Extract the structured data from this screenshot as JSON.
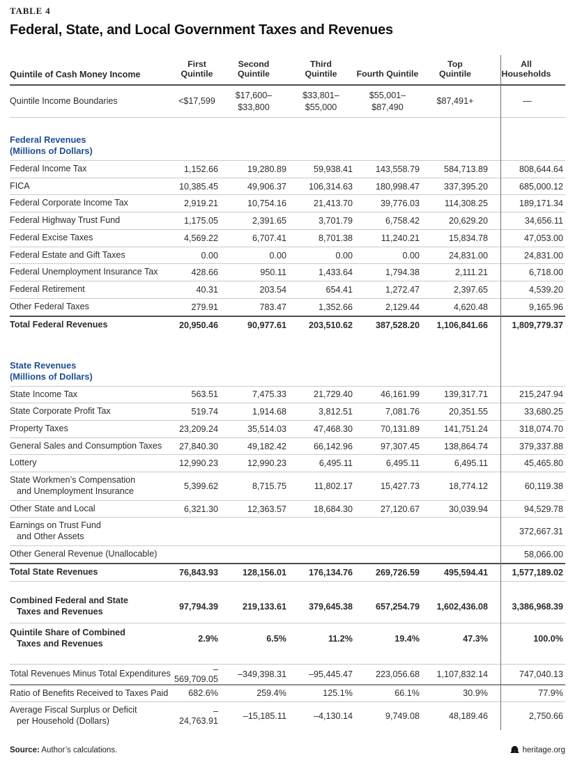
{
  "page": {
    "table_label": "TABLE 4",
    "title": "Federal, State, and Local Government Taxes and Revenues"
  },
  "table": {
    "row_header_label": "Quintile of Cash Money Income",
    "columns": [
      "First\nQuintile",
      "Second\nQuintile",
      "Third\nQuintile",
      "Fourth Quintile",
      "Top\nQuintile",
      "All\nHouseholds"
    ],
    "rows": [
      {
        "type": "boundary",
        "label": "Quintile Income Boundaries",
        "values": [
          "<$17,599",
          "$17,600–\n$33,800",
          "$33,801–\n$55,000",
          "$55,001–\n$87,490",
          "$87,491+",
          "—"
        ]
      },
      {
        "type": "section",
        "label": "Federal Revenues\n(Millions of Dollars)",
        "values": [
          "",
          "",
          "",
          "",
          "",
          ""
        ]
      },
      {
        "type": "data",
        "label": "Federal Income Tax",
        "values": [
          "1,152.66",
          "19,280.89",
          "59,938.41",
          "143,558.79",
          "584,713.89",
          "808,644.64"
        ]
      },
      {
        "type": "data",
        "label": "FICA",
        "values": [
          "10,385.45",
          "49,906.37",
          "106,314.63",
          "180,998.47",
          "337,395.20",
          "685,000.12"
        ]
      },
      {
        "type": "data",
        "label": "Federal Corporate Income Tax",
        "values": [
          "2,919.21",
          "10,754.16",
          "21,413.70",
          "39,776.03",
          "114,308.25",
          "189,171.34"
        ]
      },
      {
        "type": "data",
        "label": "Federal Highway Trust Fund",
        "values": [
          "1,175.05",
          "2,391.65",
          "3,701.79",
          "6,758.42",
          "20,629.20",
          "34,656.11"
        ]
      },
      {
        "type": "data",
        "label": "Federal Excise Taxes",
        "values": [
          "4,569.22",
          "6,707.41",
          "8,701.38",
          "11,240.21",
          "15,834.78",
          "47,053.00"
        ]
      },
      {
        "type": "data",
        "label": "Federal Estate and Gift Taxes",
        "values": [
          "0.00",
          "0.00",
          "0.00",
          "0.00",
          "24,831.00",
          "24,831.00"
        ]
      },
      {
        "type": "data",
        "label": "Federal Unemployment Insurance Tax",
        "values": [
          "428.66",
          "950.11",
          "1,433.64",
          "1,794.38",
          "2,111.21",
          "6,718.00"
        ]
      },
      {
        "type": "data",
        "label": "Federal Retirement",
        "values": [
          "40.31",
          "203.54",
          "654.41",
          "1,272.47",
          "2,397.65",
          "4,539.20"
        ]
      },
      {
        "type": "data",
        "label": "Other Federal Taxes",
        "values": [
          "279.91",
          "783.47",
          "1,352.66",
          "2,129.44",
          "4,620.48",
          "9,165.96"
        ]
      },
      {
        "type": "total",
        "label": "Total Federal Revenues",
        "values": [
          "20,950.46",
          "90,977.61",
          "203,510.62",
          "387,528.20",
          "1,106,841.66",
          "1,809,779.37"
        ]
      },
      {
        "type": "spacer"
      },
      {
        "type": "section",
        "label": "State Revenues\n(Millions of Dollars)",
        "values": [
          "",
          "",
          "",
          "",
          "",
          ""
        ]
      },
      {
        "type": "data",
        "label": "State Income Tax",
        "values": [
          "563.51",
          "7,475.33",
          "21,729.40",
          "46,161.99",
          "139,317.71",
          "215,247.94"
        ]
      },
      {
        "type": "data",
        "label": "State Corporate Profit Tax",
        "values": [
          "519.74",
          "1,914.68",
          "3,812.51",
          "7,081.76",
          "20,351.55",
          "33,680.25"
        ]
      },
      {
        "type": "data",
        "label": "Property Taxes",
        "values": [
          "23,209.24",
          "35,514.03",
          "47,468.30",
          "70,131.89",
          "141,751.24",
          "318,074.70"
        ]
      },
      {
        "type": "data",
        "label": "General Sales and Consumption Taxes",
        "values": [
          "27,840.30",
          "49,182.42",
          "66,142.96",
          "97,307.45",
          "138,864.74",
          "379,337.88"
        ]
      },
      {
        "type": "data",
        "label": "Lottery",
        "values": [
          "12,990.23",
          "12,990.23",
          "6,495.11",
          "6,495.11",
          "6,495.11",
          "45,465.80"
        ]
      },
      {
        "type": "data",
        "label": "State Workmen’s Compensation\nand Unemployment Insurance",
        "values": [
          "5,399.62",
          "8,715.75",
          "11,802.17",
          "15,427.73",
          "18,774.12",
          "60,119.38"
        ]
      },
      {
        "type": "data",
        "label": "Other State and Local",
        "values": [
          "6,321.30",
          "12,363.57",
          "18,684.30",
          "27,120.67",
          "30,039.94",
          "94,529.78"
        ]
      },
      {
        "type": "data",
        "label": "Earnings on Trust Fund\nand Other Assets",
        "values": [
          "",
          "",
          "",
          "",
          "",
          "372,667.31"
        ]
      },
      {
        "type": "data",
        "label": "Other General Revenue (Unallocable)",
        "values": [
          "",
          "",
          "",
          "",
          "",
          "58,066.00"
        ]
      },
      {
        "type": "total",
        "rb": "thin",
        "label": "Total State Revenues",
        "values": [
          "76,843.93",
          "128,156.01",
          "176,134.76",
          "269,726.59",
          "495,594.41",
          "1,577,189.02"
        ]
      },
      {
        "type": "spacer"
      },
      {
        "type": "combined",
        "label": "Combined Federal and State\nTaxes and Revenues",
        "values": [
          "97,794.39",
          "219,133.61",
          "379,645.38",
          "657,254.79",
          "1,602,436.08",
          "3,386,968.39"
        ]
      },
      {
        "type": "combined",
        "rt": "thin",
        "label": "Quintile Share of Combined\nTaxes and Revenues",
        "values": [
          "2.9%",
          "6.5%",
          "11.2%",
          "19.4%",
          "47.3%",
          "100.0%"
        ]
      },
      {
        "type": "spacer"
      },
      {
        "type": "data",
        "label": "Total Revenues Minus Total Expenditures",
        "values": [
          "–569,709.05",
          "–349,398.31",
          "–95,445.47",
          "223,056.68",
          "1,107,832.14",
          "747,040.13"
        ]
      },
      {
        "type": "data",
        "rt": "med",
        "label": "Ratio of Benefits Received to Taxes Paid",
        "values": [
          "682.6%",
          "259.4%",
          "125.1%",
          "66.1%",
          "30.9%",
          "77.9%"
        ]
      },
      {
        "type": "data",
        "label": "Average Fiscal Surplus or Deficit\nper Household (Dollars)",
        "values": [
          "–24,763.91",
          "–15,185.11",
          "–4,130.14",
          "9,749.08",
          "48,189.46",
          "2,750.66"
        ]
      }
    ]
  },
  "footer": {
    "source_label": "Source:",
    "source_text": "Author’s calculations.",
    "brand": "heritage.org",
    "brand_icon": "liberty-bell-icon"
  },
  "colors": {
    "accent_blue": "#1d4f91",
    "rule_thin": "#c9c9c9",
    "rule_heavy": "#4d4d4d",
    "rule_medium": "#8f8f8f",
    "divider_line": "#6e6e6e",
    "text": "#2b2b2b"
  }
}
